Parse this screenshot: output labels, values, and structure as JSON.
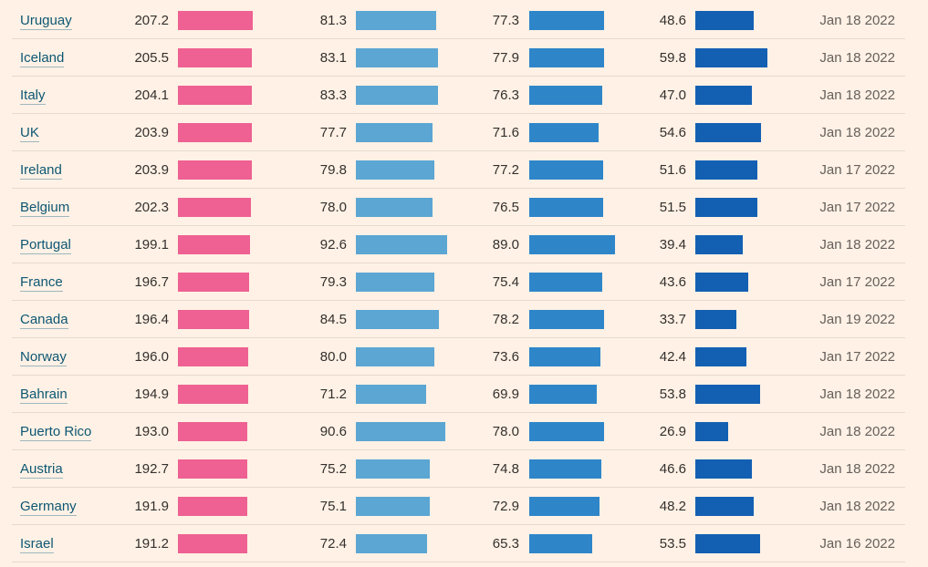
{
  "colors": {
    "background": "#fff1e5",
    "bar_col1": "#ee6192",
    "bar_col2": "#5ba6d3",
    "bar_col3": "#2e86c9",
    "bar_col4": "#1360b3",
    "link": "#0d5773"
  },
  "rows": [
    {
      "country": "Uruguay",
      "v1": "207.2",
      "v2": "81.3",
      "v3": "77.3",
      "v4": "48.6",
      "date": "Jan 18 2022"
    },
    {
      "country": "Iceland",
      "v1": "205.5",
      "v2": "83.1",
      "v3": "77.9",
      "v4": "59.8",
      "date": "Jan 18 2022"
    },
    {
      "country": "Italy",
      "v1": "204.1",
      "v2": "83.3",
      "v3": "76.3",
      "v4": "47.0",
      "date": "Jan 18 2022"
    },
    {
      "country": "UK",
      "v1": "203.9",
      "v2": "77.7",
      "v3": "71.6",
      "v4": "54.6",
      "date": "Jan 18 2022"
    },
    {
      "country": "Ireland",
      "v1": "203.9",
      "v2": "79.8",
      "v3": "77.2",
      "v4": "51.6",
      "date": "Jan 17 2022"
    },
    {
      "country": "Belgium",
      "v1": "202.3",
      "v2": "78.0",
      "v3": "76.5",
      "v4": "51.5",
      "date": "Jan 17 2022"
    },
    {
      "country": "Portugal",
      "v1": "199.1",
      "v2": "92.6",
      "v3": "89.0",
      "v4": "39.4",
      "date": "Jan 18 2022"
    },
    {
      "country": "France",
      "v1": "196.7",
      "v2": "79.3",
      "v3": "75.4",
      "v4": "43.6",
      "date": "Jan 17 2022"
    },
    {
      "country": "Canada",
      "v1": "196.4",
      "v2": "84.5",
      "v3": "78.2",
      "v4": "33.7",
      "date": "Jan 19 2022"
    },
    {
      "country": "Norway",
      "v1": "196.0",
      "v2": "80.0",
      "v3": "73.6",
      "v4": "42.4",
      "date": "Jan 17 2022"
    },
    {
      "country": "Bahrain",
      "v1": "194.9",
      "v2": "71.2",
      "v3": "69.9",
      "v4": "53.8",
      "date": "Jan 18 2022"
    },
    {
      "country": "Puerto Rico",
      "v1": "193.0",
      "v2": "90.6",
      "v3": "78.0",
      "v4": "26.9",
      "date": "Jan 18 2022"
    },
    {
      "country": "Austria",
      "v1": "192.7",
      "v2": "75.2",
      "v3": "74.8",
      "v4": "46.6",
      "date": "Jan 18 2022"
    },
    {
      "country": "Germany",
      "v1": "191.9",
      "v2": "75.1",
      "v3": "72.9",
      "v4": "48.2",
      "date": "Jan 18 2022"
    },
    {
      "country": "Israel",
      "v1": "191.2",
      "v2": "72.4",
      "v3": "65.3",
      "v4": "53.5",
      "date": "Jan 16 2022"
    }
  ]
}
